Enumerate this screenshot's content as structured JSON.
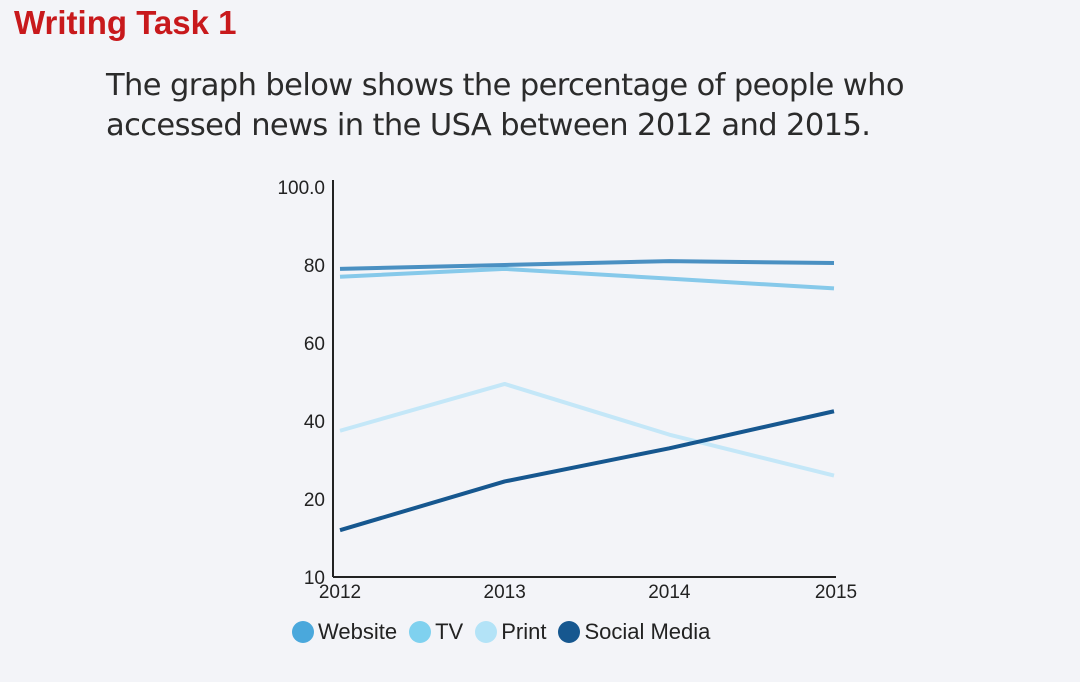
{
  "heading": "Writing Task 1",
  "prompt": "The graph below shows the percentage of people who accessed news in the USA between 2012 and 2015.",
  "chart_data": {
    "type": "line",
    "x": [
      "2012",
      "2013",
      "2014",
      "2015"
    ],
    "yticks": [
      "10",
      "20",
      "40",
      "60",
      "80",
      "100.0"
    ],
    "series": [
      {
        "name": "Website",
        "color": "#4a90c2",
        "values": [
          79,
          80,
          81,
          80.5
        ]
      },
      {
        "name": "TV",
        "color": "#86c9ea",
        "values": [
          77,
          79,
          76.5,
          74
        ]
      },
      {
        "name": "Print",
        "color": "#c4e7f8",
        "values": [
          37.5,
          49.5,
          36.5,
          26
        ]
      },
      {
        "name": "Social Media",
        "color": "#16578f",
        "values": [
          16,
          24.5,
          33,
          42.5
        ]
      }
    ],
    "legend_position": "bottom"
  },
  "legend": [
    {
      "label": "Website",
      "color": "#4aa8dc"
    },
    {
      "label": "TV",
      "color": "#7fd1ef"
    },
    {
      "label": "Print",
      "color": "#b3e3f7"
    },
    {
      "label": "Social Media",
      "color": "#16578f"
    }
  ]
}
